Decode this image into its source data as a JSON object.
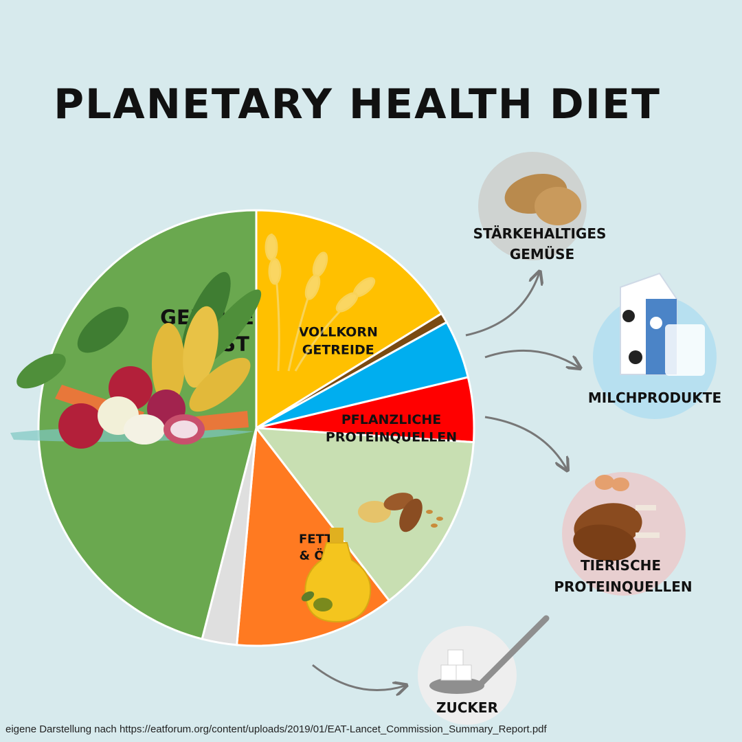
{
  "title": "PLANETARY HEALTH DIET",
  "source": "eigene Darstellung nach https://eatforum.org/content/uploads/2019/01/EAT-Lancet_Commission_Summary_Report.pdf",
  "chart_data": {
    "type": "pie",
    "slices": [
      {
        "label_lines": [
          "VOLLKORN",
          "GETREIDE"
        ],
        "value": 17.6,
        "color": "#ffc000"
      },
      {
        "label_lines": [],
        "value": 0.8,
        "color": "#7a4a12"
      },
      {
        "label_lines": [],
        "value": 4.7,
        "color": "#00aeef"
      },
      {
        "label_lines": [],
        "value": 5.2,
        "color": "#ff0000"
      },
      {
        "label_lines": [
          "PFLANZLICHE",
          "PROTEINQUELLEN"
        ],
        "value": 14.7,
        "color": "#c8dfb2"
      },
      {
        "label_lines": [
          "FETTE",
          "& ÖLE"
        ],
        "value": 12.9,
        "color": "#ff7a21"
      },
      {
        "label_lines": [],
        "value": 2.8,
        "color": "#dfdfdf"
      },
      {
        "label_lines": [
          "GEMÜSE",
          "& OBST"
        ],
        "value": 50.0,
        "color": "#6aa84f"
      }
    ],
    "callouts": [
      {
        "label_lines": [
          "STÄRKEHALTIGES",
          "GEMÜSE"
        ],
        "icon": "potato-icon",
        "circle_color": "#cfd3d1",
        "from_slice": 1
      },
      {
        "label_lines": [
          "MILCHPRODUKTE"
        ],
        "icon": "milk-carton-icon",
        "circle_color": "#b7e0f0",
        "from_slice": 2
      },
      {
        "label_lines": [
          "TIERISCHE",
          "PROTEINQUELLEN"
        ],
        "icon": "chicken-leg-icon",
        "circle_color": "#e8cfd0",
        "from_slice": 3
      },
      {
        "label_lines": [
          "ZUCKER"
        ],
        "icon": "sugar-spoon-icon",
        "circle_color": "#eeeeee",
        "from_slice": 6
      }
    ]
  }
}
